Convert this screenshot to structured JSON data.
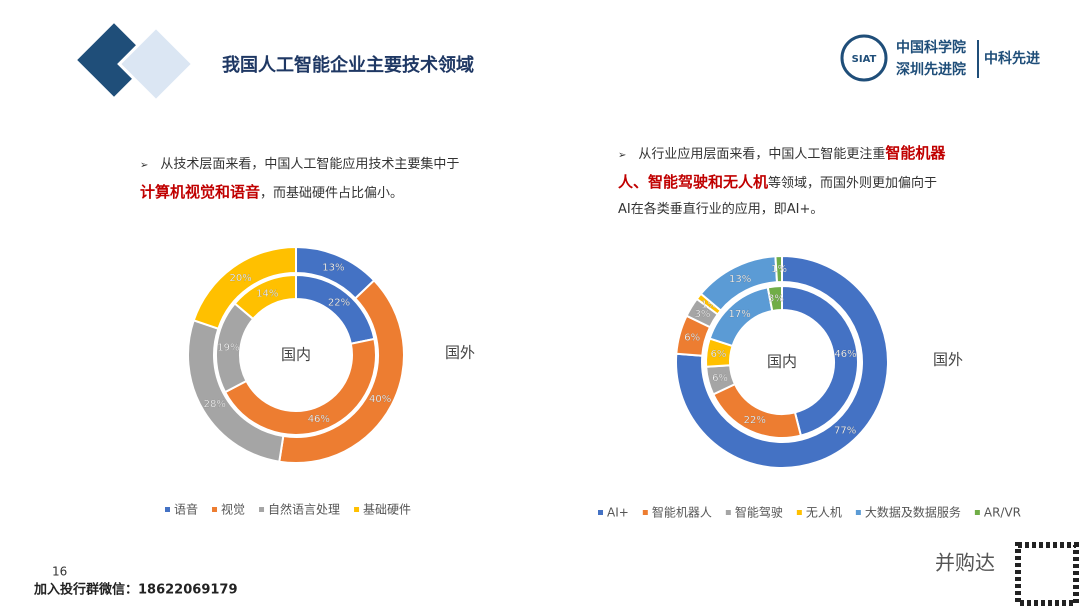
{
  "header": {
    "title": "我国人工智能企业主要技术领域",
    "logo_mark": "SIAT",
    "logo_line1": "中国科学院",
    "logo_line2": "深圳先进院",
    "logo_brand": "中科先进"
  },
  "bullets": [
    {
      "marker": "➢",
      "parts": [
        {
          "text": "从技术层面来看，中国人工智能应用技术主要集中于"
        },
        {
          "text": "计算机视觉和语音",
          "highlight": true
        },
        {
          "text": "，而基础硬件占比偏小。"
        }
      ]
    },
    {
      "marker": "➢",
      "parts": [
        {
          "text": "从行业应用层面来看，中国人工智能更注重"
        },
        {
          "text": "智能机器人、智能驾驶和无人机",
          "highlight": true
        },
        {
          "text": "等领域，而国外则更加偏向于AI在各类垂直行业的应用，即AI+。"
        }
      ]
    }
  ],
  "chart_data": [
    {
      "type": "donut",
      "categories": [
        "语音",
        "视觉",
        "自然语言处理",
        "基础硬件"
      ],
      "colors": [
        "#4472c4",
        "#ed7d31",
        "#a5a5a5",
        "#ffc000"
      ],
      "series": [
        {
          "name": "国内",
          "values": [
            22,
            46,
            19,
            14
          ],
          "value_labels": [
            "22%",
            "46%",
            "19%",
            "14%"
          ]
        },
        {
          "name": "国外",
          "values": [
            13,
            40,
            28,
            20
          ],
          "value_labels": [
            "13%",
            "40%",
            "28%",
            "20%"
          ]
        }
      ]
    },
    {
      "type": "donut",
      "categories": [
        "AI+",
        "智能机器人",
        "智能驾驶",
        "无人机",
        "大数据及数据服务",
        "AR/VR"
      ],
      "colors": [
        "#4472c4",
        "#ed7d31",
        "#a5a5a5",
        "#ffc000",
        "#5b9bd5",
        "#70ad47"
      ],
      "series": [
        {
          "name": "国内",
          "values": [
            46,
            22,
            6,
            6,
            17,
            3
          ],
          "value_labels": [
            "46%",
            "22%",
            "6%",
            "6%",
            "17%",
            "3%"
          ]
        },
        {
          "name": "国外",
          "values": [
            77,
            6,
            3,
            1,
            13,
            1
          ],
          "value_labels": [
            "77%",
            "6%",
            "3%",
            "1%",
            "13%",
            "1%"
          ]
        }
      ]
    }
  ],
  "footer": {
    "page": "16",
    "contact": "加入投行群微信：18622069179",
    "watermark": "并购达"
  }
}
